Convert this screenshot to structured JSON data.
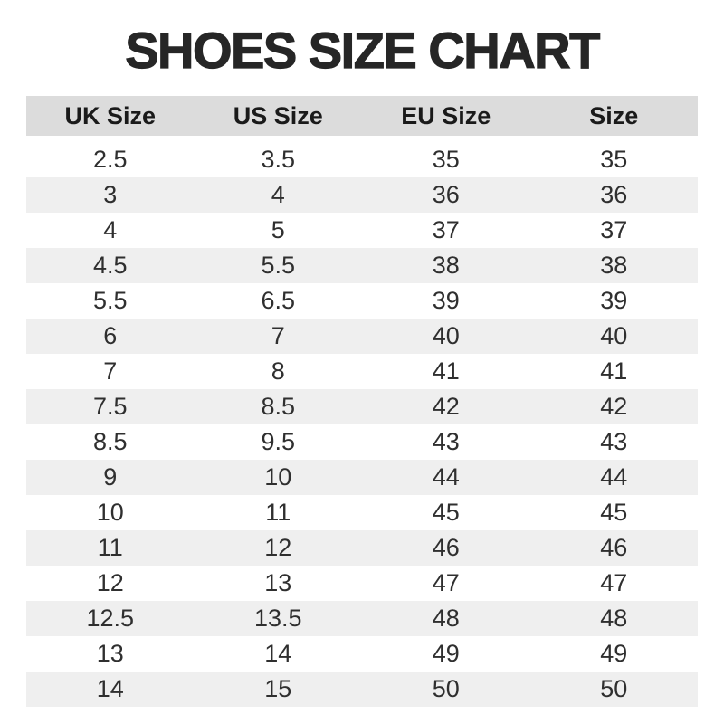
{
  "chart_data": {
    "type": "table",
    "title": "SHOES SIZE CHART",
    "columns": [
      "UK Size",
      "US Size",
      "EU Size",
      "Size"
    ],
    "rows": [
      [
        "2.5",
        "3.5",
        "35",
        "35"
      ],
      [
        "3",
        "4",
        "36",
        "36"
      ],
      [
        "4",
        "5",
        "37",
        "37"
      ],
      [
        "4.5",
        "5.5",
        "38",
        "38"
      ],
      [
        "5.5",
        "6.5",
        "39",
        "39"
      ],
      [
        "6",
        "7",
        "40",
        "40"
      ],
      [
        "7",
        "8",
        "41",
        "41"
      ],
      [
        "7.5",
        "8.5",
        "42",
        "42"
      ],
      [
        "8.5",
        "9.5",
        "43",
        "43"
      ],
      [
        "9",
        "10",
        "44",
        "44"
      ],
      [
        "10",
        "11",
        "45",
        "45"
      ],
      [
        "11",
        "12",
        "46",
        "46"
      ],
      [
        "12",
        "13",
        "47",
        "47"
      ],
      [
        "12.5",
        "13.5",
        "48",
        "48"
      ],
      [
        "13",
        "14",
        "49",
        "49"
      ],
      [
        "14",
        "15",
        "50",
        "50"
      ]
    ],
    "layout": {
      "striped": true,
      "first_body_row_background": "white",
      "alignment": "center"
    }
  },
  "colors": {
    "page_bg": "#ffffff",
    "title_color": "#262626",
    "header_bg": "#dcdcdc",
    "header_text": "#1a1a1a",
    "stripe_bg": "#efefef",
    "row_bg": "#ffffff",
    "body_text": "#2f2f2f"
  }
}
